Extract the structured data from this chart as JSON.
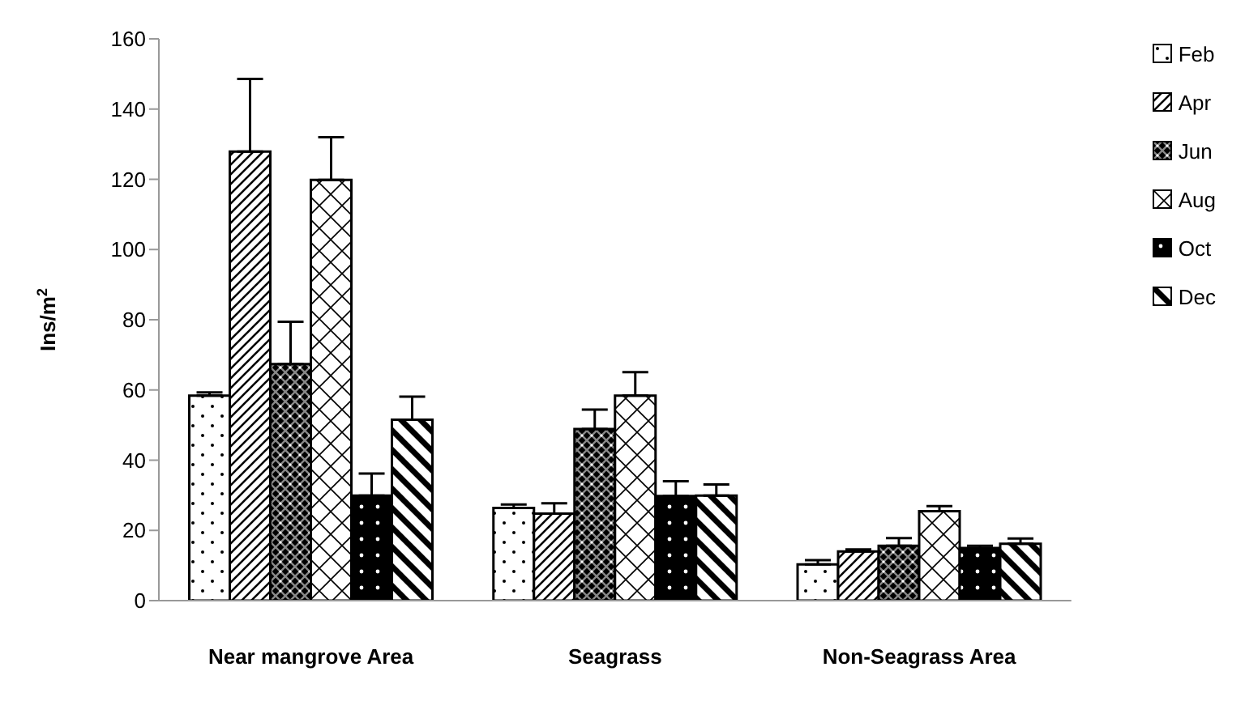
{
  "chart_data": {
    "type": "bar",
    "ylabel": "Ins/m$^{2}$",
    "categories": [
      "Near mangrove Area",
      "Seagrass",
      "Non-Seagrass Area"
    ],
    "series": [
      {
        "name": "Feb",
        "color": "#000000",
        "values": [
          58.4,
          26.4,
          10.3
        ],
        "errors": [
          [
            58.4,
            59.3
          ],
          [
            26.4,
            27.4
          ],
          [
            10.3,
            11.5
          ]
        ]
      },
      {
        "name": "Apr",
        "color": "#000000",
        "values": [
          127.9,
          24.8,
          14.0
        ],
        "errors": [
          [
            127.9,
            148.6
          ],
          [
            24.8,
            27.7
          ],
          [
            14.0,
            14.6
          ]
        ]
      },
      {
        "name": "Jun",
        "color": "#000000",
        "values": [
          67.4,
          48.9,
          15.6
        ],
        "errors": [
          [
            67.4,
            79.4
          ],
          [
            48.9,
            54.4
          ],
          [
            15.6,
            17.8
          ]
        ]
      },
      {
        "name": "Aug",
        "color": "#000000",
        "values": [
          119.8,
          58.4,
          25.5
        ],
        "errors": [
          [
            119.8,
            132
          ],
          [
            58.4,
            65.1
          ],
          [
            25.5,
            26.9
          ]
        ]
      },
      {
        "name": "Oct",
        "color": "#000000",
        "values": [
          29.9,
          29.8,
          15.0
        ],
        "errors": [
          [
            29.9,
            36.2
          ],
          [
            29.8,
            34.0
          ],
          [
            15.0,
            15.6
          ]
        ]
      },
      {
        "name": "Dec",
        "color": "#000000",
        "values": [
          51.5,
          29.9,
          16.2
        ],
        "errors": [
          [
            51.5,
            58.1
          ],
          [
            29.9,
            33.1
          ],
          [
            16.2,
            17.7
          ]
        ]
      }
    ],
    "ylim": [
      0,
      160
    ],
    "yticks": [
      0,
      20,
      40,
      60,
      80,
      100,
      120,
      140,
      160
    ],
    "grid": false,
    "legend": "right"
  }
}
